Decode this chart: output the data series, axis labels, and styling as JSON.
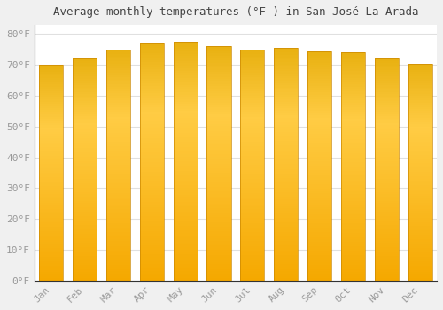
{
  "title": "Average monthly temperatures (°F ) in San José La Arada",
  "months": [
    "Jan",
    "Feb",
    "Mar",
    "Apr",
    "May",
    "Jun",
    "Jul",
    "Aug",
    "Sep",
    "Oct",
    "Nov",
    "Dec"
  ],
  "values": [
    70,
    72,
    75,
    77,
    77.5,
    76,
    75,
    75.5,
    74.5,
    74,
    72,
    70.5
  ],
  "bar_color_light": "#FFCC44",
  "bar_color_dark": "#F5A800",
  "bar_edge_color": "#CC8800",
  "background_color": "#F0F0F0",
  "plot_bg_color": "#FFFFFF",
  "ytick_labels": [
    "0°F",
    "10°F",
    "20°F",
    "30°F",
    "40°F",
    "50°F",
    "60°F",
    "70°F",
    "80°F"
  ],
  "ytick_values": [
    0,
    10,
    20,
    30,
    40,
    50,
    60,
    70,
    80
  ],
  "ylim": [
    0,
    83
  ],
  "title_fontsize": 9,
  "tick_fontsize": 8,
  "tick_color": "#999999",
  "grid_color": "#E0E0E0",
  "title_color": "#444444",
  "spine_color": "#333333"
}
